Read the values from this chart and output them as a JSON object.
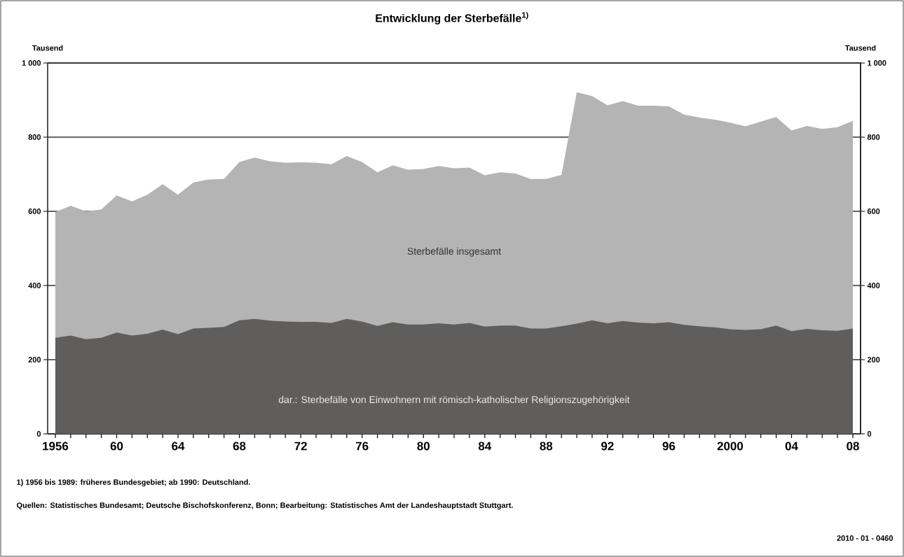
{
  "chart_data": {
    "type": "area",
    "title": "Entwicklung der Sterbefälle$^{1)}$",
    "ylabel": "Tausend",
    "y2label": "Tausend",
    "x": [
      1956,
      1957,
      1958,
      1959,
      1960,
      1961,
      1962,
      1963,
      1964,
      1965,
      1966,
      1967,
      1968,
      1969,
      1970,
      1971,
      1972,
      1973,
      1974,
      1975,
      1976,
      1977,
      1978,
      1979,
      1980,
      1981,
      1982,
      1983,
      1984,
      1985,
      1986,
      1987,
      1988,
      1989,
      1990,
      1991,
      1992,
      1993,
      1994,
      1995,
      1996,
      1997,
      1998,
      1999,
      2000,
      2001,
      2002,
      2003,
      2004,
      2005,
      2006,
      2007,
      2008
    ],
    "series": [
      {
        "name": "Sterbefälle insgesamt",
        "color": "#b4b4b4",
        "values": [
          598,
          615,
          600,
          605,
          643,
          627,
          645,
          673,
          645,
          678,
          686,
          687,
          733,
          745,
          735,
          731,
          732,
          731,
          727,
          749,
          733,
          705,
          724,
          712,
          714,
          722,
          716,
          718,
          697,
          705,
          702,
          687,
          687,
          698,
          921,
          911,
          886,
          897,
          885,
          885,
          883,
          861,
          853,
          847,
          839,
          829,
          842,
          854,
          818,
          830,
          822,
          827,
          844
        ]
      },
      {
        "name": "dar.: Sterbefälle von Einwohnern mit römisch-katholischer Religionszugehörigkeit",
        "color": "#5f5e5d",
        "values": [
          259,
          265,
          255,
          259,
          273,
          265,
          270,
          281,
          269,
          284,
          286,
          288,
          306,
          310,
          305,
          303,
          302,
          302,
          299,
          310,
          303,
          291,
          301,
          295,
          295,
          298,
          295,
          299,
          289,
          292,
          292,
          284,
          284,
          290,
          297,
          306,
          298,
          304,
          300,
          298,
          301,
          294,
          290,
          287,
          282,
          280,
          282,
          292,
          277,
          283,
          279,
          278,
          284
        ]
      }
    ],
    "xlim": [
      1955.5,
      2008.5
    ],
    "xticks": [
      {
        "value": 1956,
        "label": "1956"
      },
      {
        "value": 1957,
        "label": null
      },
      {
        "value": 1958,
        "label": null
      },
      {
        "value": 1959,
        "label": null
      },
      {
        "value": 1960,
        "label": "60"
      },
      {
        "value": 1961,
        "label": null
      },
      {
        "value": 1962,
        "label": null
      },
      {
        "value": 1963,
        "label": null
      },
      {
        "value": 1964,
        "label": "64"
      },
      {
        "value": 1965,
        "label": null
      },
      {
        "value": 1966,
        "label": null
      },
      {
        "value": 1967,
        "label": null
      },
      {
        "value": 1968,
        "label": "68"
      },
      {
        "value": 1969,
        "label": null
      },
      {
        "value": 1970,
        "label": null
      },
      {
        "value": 1971,
        "label": null
      },
      {
        "value": 1972,
        "label": "72"
      },
      {
        "value": 1973,
        "label": null
      },
      {
        "value": 1974,
        "label": null
      },
      {
        "value": 1975,
        "label": null
      },
      {
        "value": 1976,
        "label": "76"
      },
      {
        "value": 1977,
        "label": null
      },
      {
        "value": 1978,
        "label": null
      },
      {
        "value": 1979,
        "label": null
      },
      {
        "value": 1980,
        "label": "80"
      },
      {
        "value": 1981,
        "label": null
      },
      {
        "value": 1982,
        "label": null
      },
      {
        "value": 1983,
        "label": null
      },
      {
        "value": 1984,
        "label": "84"
      },
      {
        "value": 1985,
        "label": null
      },
      {
        "value": 1986,
        "label": null
      },
      {
        "value": 1987,
        "label": null
      },
      {
        "value": 1988,
        "label": "88"
      },
      {
        "value": 1989,
        "label": null
      },
      {
        "value": 1990,
        "label": null
      },
      {
        "value": 1991,
        "label": null
      },
      {
        "value": 1992,
        "label": "92"
      },
      {
        "value": 1993,
        "label": null
      },
      {
        "value": 1994,
        "label": null
      },
      {
        "value": 1995,
        "label": null
      },
      {
        "value": 1996,
        "label": "96"
      },
      {
        "value": 1997,
        "label": null
      },
      {
        "value": 1998,
        "label": null
      },
      {
        "value": 1999,
        "label": null
      },
      {
        "value": 2000,
        "label": "2000"
      },
      {
        "value": 2001,
        "label": null
      },
      {
        "value": 2002,
        "label": null
      },
      {
        "value": 2003,
        "label": null
      },
      {
        "value": 2004,
        "label": "04"
      },
      {
        "value": 2005,
        "label": null
      },
      {
        "value": 2006,
        "label": null
      },
      {
        "value": 2007,
        "label": null
      },
      {
        "value": 2008,
        "label": "08"
      }
    ],
    "ylim": [
      0,
      1000
    ],
    "yticks": [
      0,
      200,
      400,
      600,
      800,
      {
        "value": 1000,
        "label": "1 000"
      }
    ],
    "y2lim": [
      0,
      1000
    ],
    "y2ticks": [
      0,
      200,
      400,
      600,
      800,
      {
        "value": 1000,
        "label": "1 000"
      }
    ],
    "grid": "y",
    "annotations": [
      "1) 1956 bis 1989: früheres Bundesgebiet; ab 1990: Deutschland.",
      "Quellen: Statistisches Bundesamt; Deutsche Bischofskonferenz, Bonn; Bearbeitung: Statistisches Amt der Landeshauptstadt Stuttgart.",
      "2010 - 01 - 0460"
    ]
  }
}
